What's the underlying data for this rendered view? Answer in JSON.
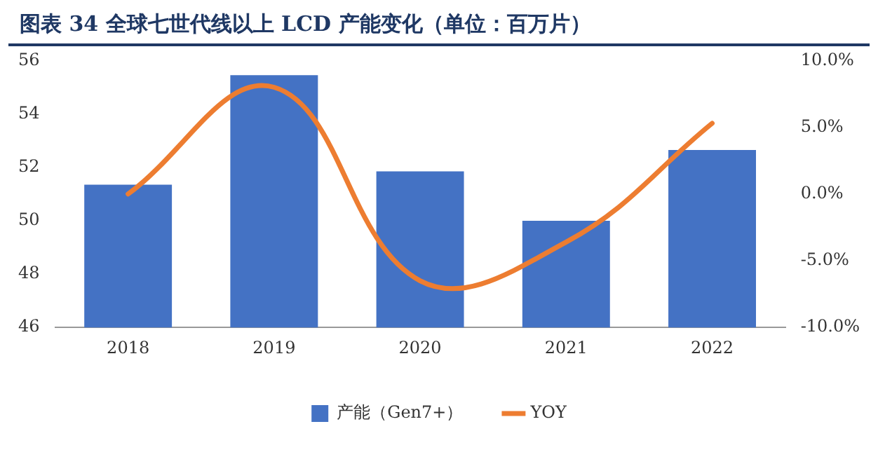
{
  "chart_data": {
    "type": "bar",
    "title": "图表 34 全球七世代线以上 LCD 产能变化（单位：百万片）",
    "categories": [
      "2018",
      "2019",
      "2020",
      "2021",
      "2022"
    ],
    "series": [
      {
        "name": "产能（Gen7+）",
        "color": "#4472c4",
        "values": [
          51.35,
          55.45,
          51.85,
          50.0,
          52.65
        ]
      },
      {
        "name": "YOY",
        "type": "line",
        "axis": "y2",
        "color": "#ed7d31",
        "values": [
          0.0,
          8.0,
          -6.5,
          -3.6,
          5.3
        ]
      }
    ],
    "ylim": [
      46,
      56
    ],
    "yticks": [
      46,
      48,
      50,
      52,
      54,
      56
    ],
    "y2lim": [
      -10,
      10
    ],
    "y2ticks": [
      {
        "value": -10,
        "label": "-10.0%"
      },
      {
        "value": -5,
        "label": "-5.0%"
      },
      {
        "value": 0,
        "label": "0.0%"
      },
      {
        "value": 5,
        "label": "5.0%"
      },
      {
        "value": 10,
        "label": "10.0%"
      }
    ],
    "grid": false,
    "legend": "bottom",
    "marker": "none"
  }
}
